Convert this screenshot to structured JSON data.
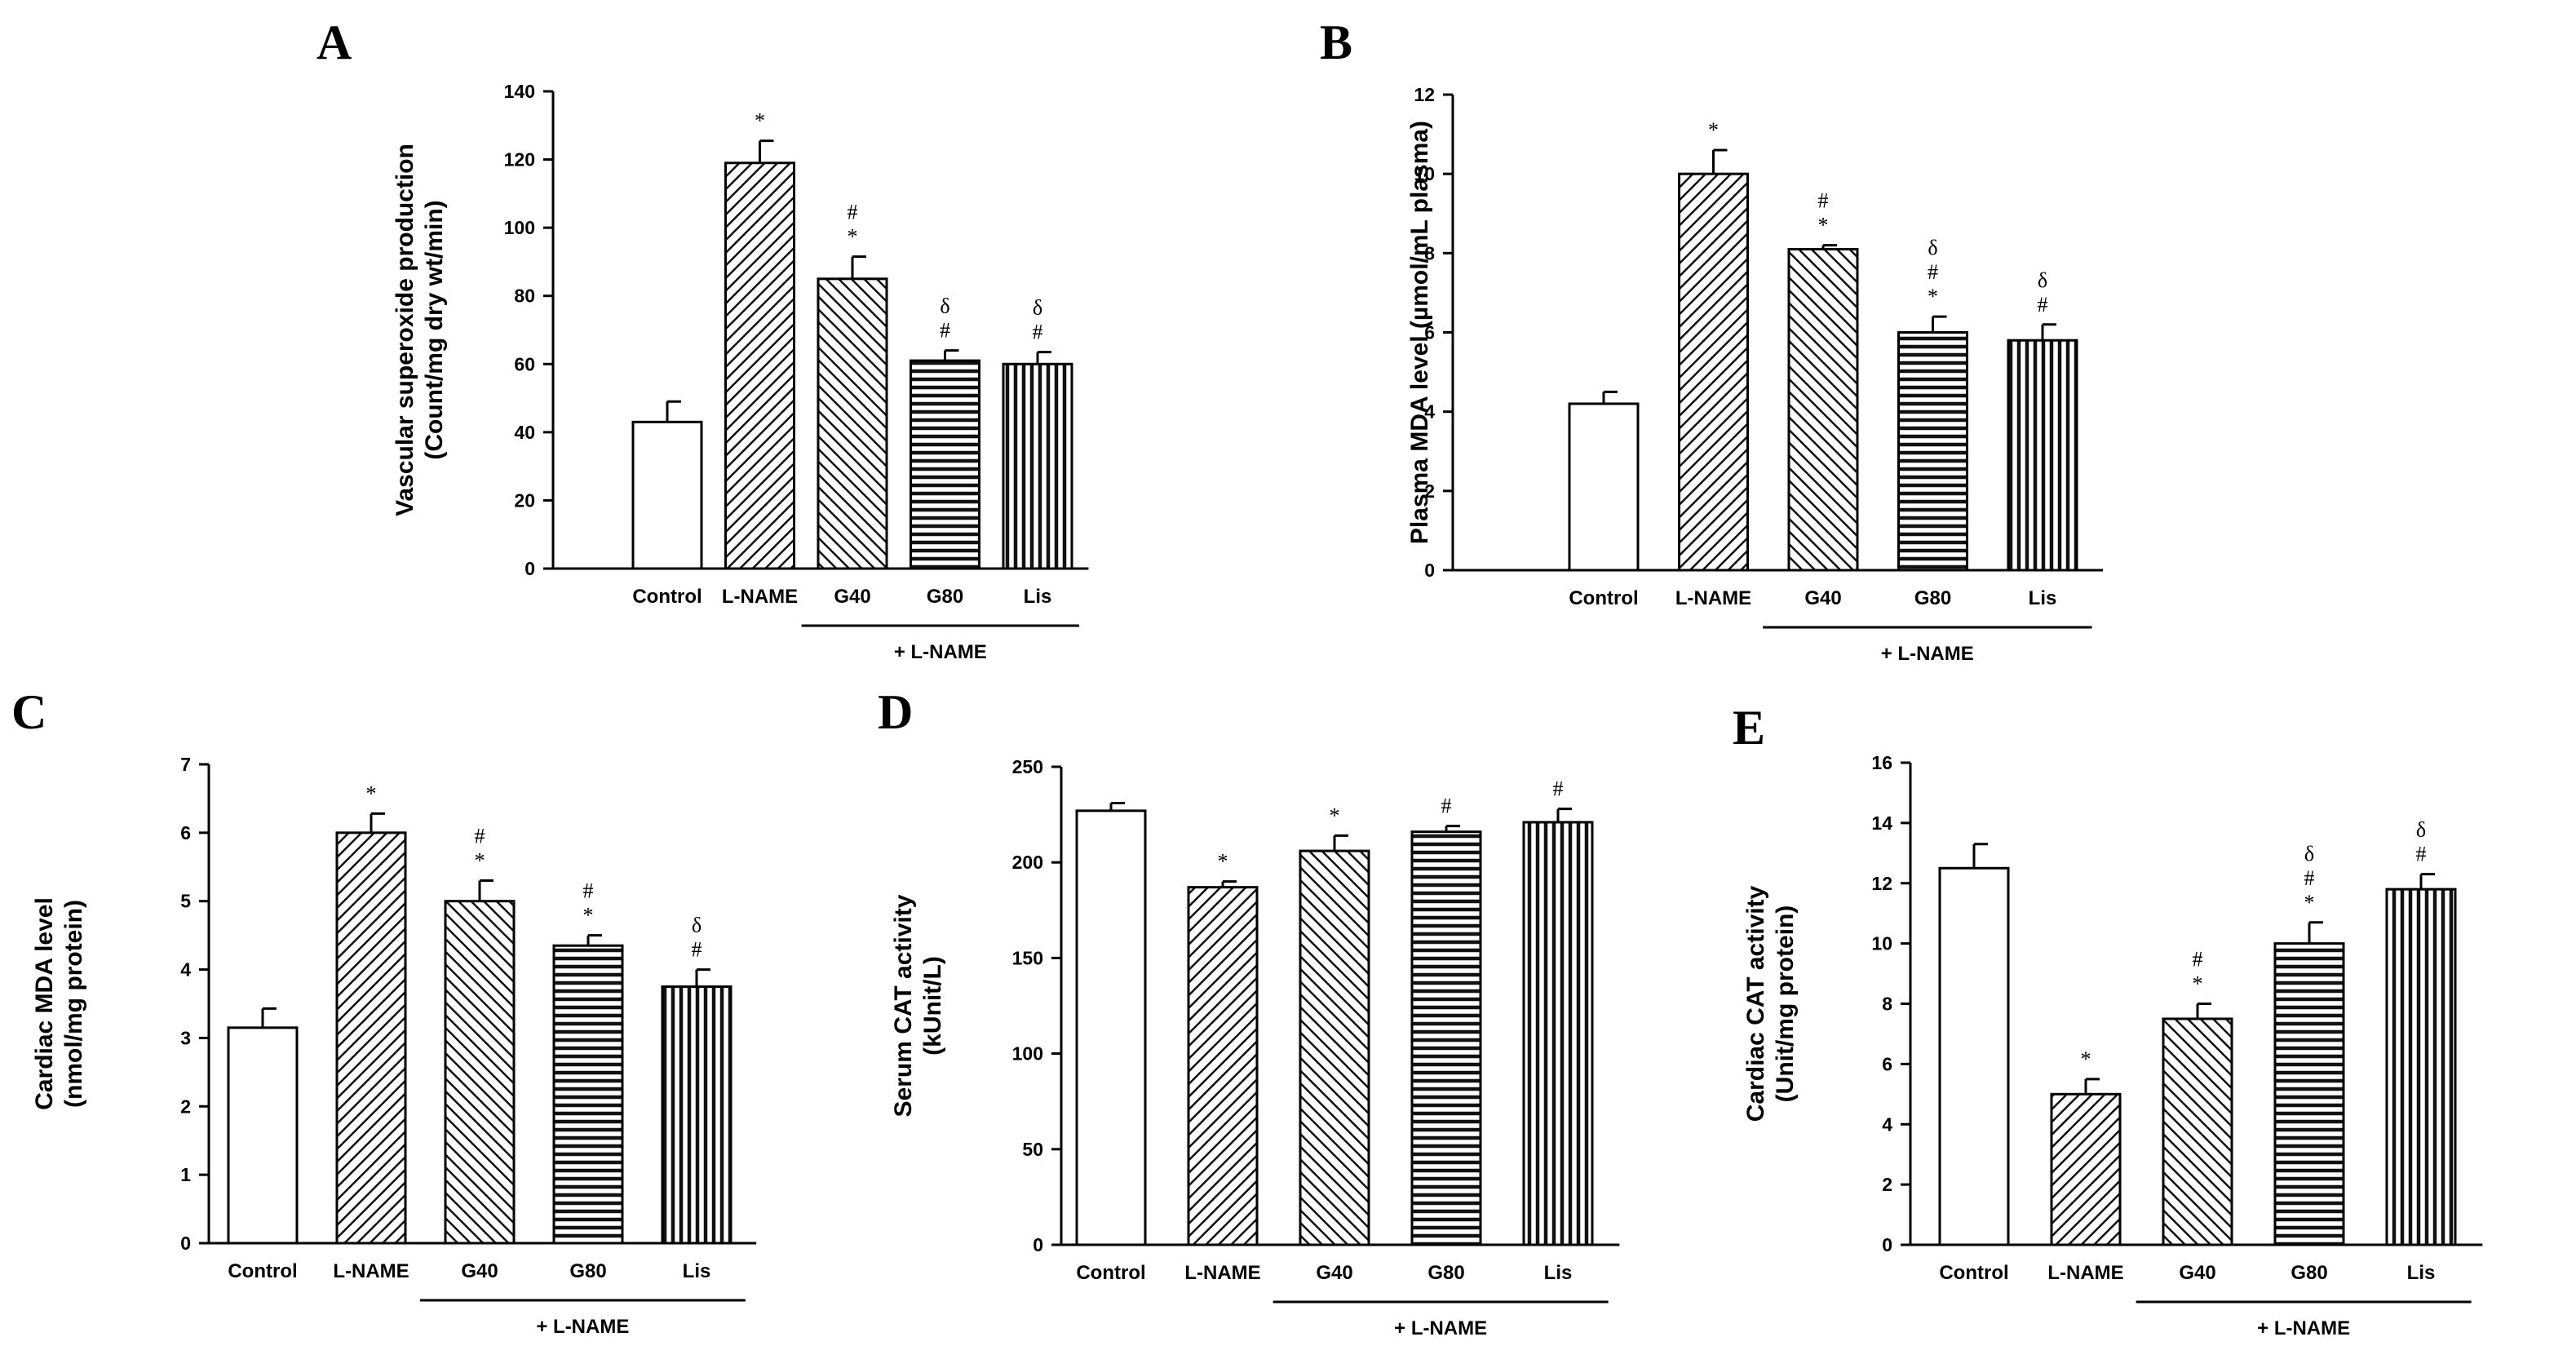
{
  "chart_data": [
    {
      "panel": "A",
      "type": "bar",
      "categories": [
        "Control",
        "L-NAME",
        "G40",
        "G80",
        "Lis"
      ],
      "values": [
        43,
        119,
        85,
        61,
        60
      ],
      "errors": [
        6,
        6.5,
        6.5,
        3,
        3.5
      ],
      "patterns": [
        "none",
        "diag-right",
        "diag-left",
        "horizontal",
        "vertical"
      ],
      "significance": [
        [],
        [
          "*"
        ],
        [
          "*",
          "#"
        ],
        [
          "#",
          "δ"
        ],
        [
          "#",
          "δ"
        ]
      ],
      "ylabel_lines": [
        "Vascular superoxide production",
        "(Count/mg dry wt/min)"
      ],
      "ylim": [
        0,
        140
      ],
      "yticks": [
        0,
        20,
        40,
        60,
        80,
        100,
        120,
        140
      ],
      "ytick_labels": [
        "0",
        "20",
        "40",
        "60",
        "80",
        "100",
        "120",
        "140"
      ],
      "group_label": "+ L-NAME",
      "group_range": [
        2,
        4
      ]
    },
    {
      "panel": "B",
      "type": "bar",
      "categories": [
        "Control",
        "L-NAME",
        "G40",
        "G80",
        "Lis"
      ],
      "values": [
        4.2,
        10.0,
        8.1,
        6.0,
        5.8
      ],
      "errors": [
        0.3,
        0.6,
        0.1,
        0.4,
        0.4
      ],
      "patterns": [
        "none",
        "diag-right",
        "diag-left",
        "horizontal",
        "vertical"
      ],
      "significance": [
        [],
        [
          "*"
        ],
        [
          "*",
          "#"
        ],
        [
          "*",
          "#",
          "δ"
        ],
        [
          "#",
          "δ"
        ]
      ],
      "ylabel_lines": [
        "Plasma MDA level (µmol/mL plasma)"
      ],
      "ylim": [
        0,
        12
      ],
      "yticks": [
        0,
        2,
        4,
        6,
        8,
        10,
        12
      ],
      "ytick_labels": [
        "0",
        "2",
        "4",
        "6",
        "8",
        "10",
        "12"
      ],
      "group_label": "+ L-NAME",
      "group_range": [
        2,
        4
      ]
    },
    {
      "panel": "C",
      "type": "bar",
      "categories": [
        "Control",
        "L-NAME",
        "G40",
        "G80",
        "Lis"
      ],
      "values": [
        3.15,
        6.0,
        5.0,
        4.35,
        3.75
      ],
      "errors": [
        0.28,
        0.28,
        0.3,
        0.15,
        0.25
      ],
      "patterns": [
        "none",
        "diag-right",
        "diag-left",
        "horizontal",
        "vertical"
      ],
      "significance": [
        [],
        [
          "*"
        ],
        [
          "*",
          "#"
        ],
        [
          "*",
          "#"
        ],
        [
          "#",
          "δ"
        ]
      ],
      "ylabel_lines": [
        "Cardiac MDA level",
        "(nmol/mg protein)"
      ],
      "ylim": [
        0,
        7
      ],
      "yticks": [
        0,
        1,
        2,
        3,
        4,
        5,
        6,
        7
      ],
      "ytick_labels": [
        "0",
        "1",
        "2",
        "3",
        "4",
        "5",
        "6",
        "7"
      ],
      "group_label": "+ L-NAME",
      "group_range": [
        2,
        4
      ]
    },
    {
      "panel": "D",
      "type": "bar",
      "categories": [
        "Control",
        "L-NAME",
        "G40",
        "G80",
        "Lis"
      ],
      "values": [
        227,
        187,
        206,
        216,
        221
      ],
      "errors": [
        4,
        3,
        8,
        3,
        7
      ],
      "patterns": [
        "none",
        "diag-right",
        "diag-left",
        "horizontal",
        "vertical"
      ],
      "significance": [
        [],
        [
          "*"
        ],
        [
          "*"
        ],
        [
          "#"
        ],
        [
          "#"
        ]
      ],
      "ylabel_lines": [
        "Serum CAT activity",
        "(kUnit/L)"
      ],
      "ylim": [
        0,
        250
      ],
      "yticks": [
        0,
        50,
        100,
        150,
        200,
        250
      ],
      "ytick_labels": [
        "0",
        "50",
        "100",
        "150",
        "200",
        "250"
      ],
      "group_label": "+ L-NAME",
      "group_range": [
        2,
        4
      ]
    },
    {
      "panel": "E",
      "type": "bar",
      "categories": [
        "Control",
        "L-NAME",
        "G40",
        "G80",
        "Lis"
      ],
      "values": [
        12.5,
        5.0,
        7.5,
        10.0,
        11.8
      ],
      "errors": [
        0.8,
        0.5,
        0.5,
        0.7,
        0.5
      ],
      "patterns": [
        "none",
        "diag-right",
        "diag-left",
        "horizontal",
        "vertical"
      ],
      "significance": [
        [],
        [
          "*"
        ],
        [
          "*",
          "#"
        ],
        [
          "*",
          "#",
          "δ"
        ],
        [
          "#",
          "δ"
        ]
      ],
      "ylabel_lines": [
        "Cardiac CAT activity",
        "(Unit/mg protein)"
      ],
      "ylim": [
        0,
        16
      ],
      "yticks": [
        0,
        2,
        4,
        6,
        8,
        10,
        12,
        14,
        16
      ],
      "ytick_labels": [
        "0",
        "2",
        "4",
        "6",
        "8",
        "10",
        "12",
        "14",
        "16"
      ],
      "group_label": "+ L-NAME",
      "group_range": [
        2,
        4
      ]
    }
  ]
}
